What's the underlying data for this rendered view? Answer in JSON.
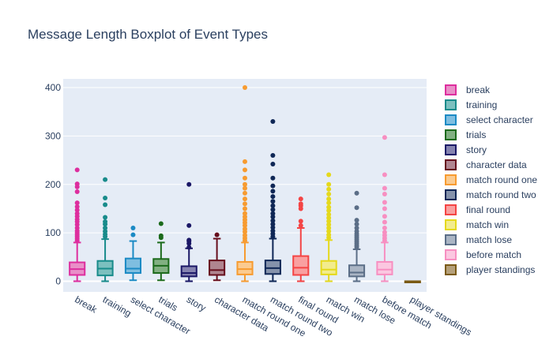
{
  "chart_data": {
    "type": "box",
    "title": "Message Length Boxplot of Event Types",
    "xlabel": "",
    "ylabel": "",
    "ylim": [
      -22,
      418
    ],
    "yticks": [
      0,
      100,
      200,
      300,
      400
    ],
    "grid": true,
    "legend_position": "right",
    "categories": [
      "break",
      "training",
      "select character",
      "trials",
      "story",
      "character data",
      "match round one",
      "match round two",
      "final round",
      "match win",
      "match lose",
      "before match",
      "player standings"
    ],
    "series": [
      {
        "name": "break",
        "color": "#dd2e9e",
        "fill": "#e98fc8",
        "min": 0,
        "q1": 13,
        "median": 25,
        "q3": 39,
        "upper_fence": 80,
        "outliers": [
          84,
          88,
          92,
          96,
          100,
          104,
          110,
          117,
          123,
          128,
          134,
          140,
          147,
          154,
          162,
          185,
          195,
          201,
          230
        ]
      },
      {
        "name": "training",
        "color": "#188b8b",
        "fill": "#7cc0bf",
        "min": 0,
        "q1": 12,
        "median": 26,
        "q3": 42,
        "upper_fence": 87,
        "outliers": [
          92,
          97,
          103,
          110,
          118,
          123,
          132,
          158,
          172,
          210
        ]
      },
      {
        "name": "select character",
        "color": "#1b8ac4",
        "fill": "#7fbee0",
        "min": 2,
        "q1": 17,
        "median": 26,
        "q3": 47,
        "upper_fence": 83,
        "outliers": [
          96,
          110
        ]
      },
      {
        "name": "trials",
        "color": "#1b6a1b",
        "fill": "#82b082",
        "min": 2,
        "q1": 17,
        "median": 32,
        "q3": 46,
        "upper_fence": 80,
        "outliers": [
          90,
          94,
          119
        ]
      },
      {
        "name": "story",
        "color": "#1a1766",
        "fill": "#8583b0",
        "min": 0,
        "q1": 10,
        "median": 17,
        "q3": 31,
        "upper_fence": 68,
        "outliers": [
          70,
          78,
          83,
          85,
          115,
          200
        ]
      },
      {
        "name": "character data",
        "color": "#660e1c",
        "fill": "#b08590",
        "min": 2,
        "q1": 13,
        "median": 23,
        "q3": 43,
        "upper_fence": 88,
        "outliers": [
          96
        ]
      },
      {
        "name": "match round one",
        "color": "#f79b30",
        "fill": "#fbcb90",
        "min": 0,
        "q1": 14,
        "median": 25,
        "q3": 40,
        "upper_fence": 80,
        "outliers": [
          84,
          89,
          95,
          102,
          108,
          115,
          121,
          127,
          133,
          140,
          150,
          160,
          170,
          182,
          192,
          200,
          213,
          230,
          247,
          400
        ]
      },
      {
        "name": "match round two",
        "color": "#0f2756",
        "fill": "#8592ab",
        "min": 0,
        "q1": 15,
        "median": 27,
        "q3": 43,
        "upper_fence": 88,
        "outliers": [
          92,
          98,
          104,
          111,
          118,
          125,
          133,
          140,
          148,
          156,
          165,
          175,
          186,
          197,
          213,
          242,
          260,
          330
        ]
      },
      {
        "name": "final round",
        "color": "#f44444",
        "fill": "#f9a0a0",
        "min": 0,
        "q1": 13,
        "median": 28,
        "q3": 52,
        "upper_fence": 110,
        "outliers": [
          115,
          124,
          150,
          156,
          160,
          170
        ]
      },
      {
        "name": "match win",
        "color": "#e5d91c",
        "fill": "#f2ec8d",
        "min": 0,
        "q1": 14,
        "median": 24,
        "q3": 42,
        "upper_fence": 85,
        "outliers": [
          90,
          96,
          103,
          110,
          117,
          124,
          131,
          138,
          146,
          153,
          162,
          170,
          180,
          190,
          200,
          220
        ]
      },
      {
        "name": "match lose",
        "color": "#5b6e87",
        "fill": "#aab5c4",
        "min": 0,
        "q1": 10,
        "median": 18,
        "q3": 33,
        "upper_fence": 66,
        "outliers": [
          70,
          74,
          78,
          82,
          86,
          90,
          94,
          98,
          103,
          110,
          118,
          126,
          152,
          182
        ]
      },
      {
        "name": "before match",
        "color": "#f78fc1",
        "fill": "#fbc7e0",
        "min": 0,
        "q1": 14,
        "median": 24,
        "q3": 40,
        "upper_fence": 80,
        "outliers": [
          84,
          89,
          95,
          101,
          110,
          122,
          134,
          150,
          163,
          180,
          192,
          220,
          297
        ]
      },
      {
        "name": "player standings",
        "color": "#7a5a14",
        "fill": "#b5a07a",
        "min": 0,
        "q1": 0,
        "median": 0,
        "q3": 0,
        "upper_fence": 0,
        "outliers": []
      }
    ]
  }
}
